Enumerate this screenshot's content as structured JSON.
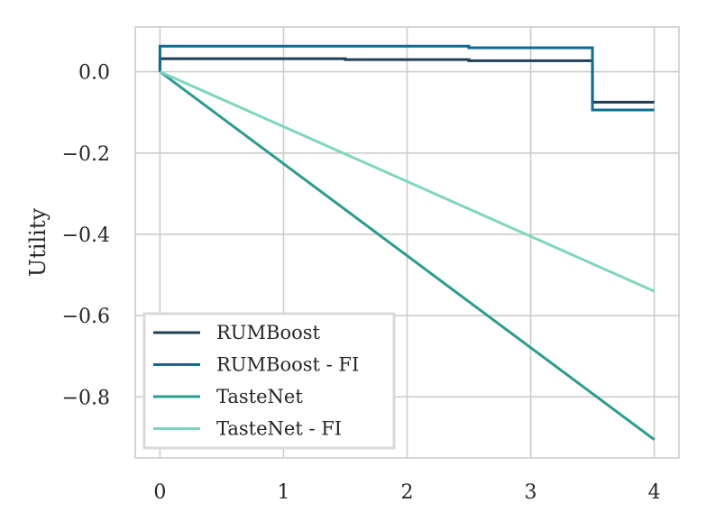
{
  "chart_data": {
    "type": "line",
    "title": "",
    "xlabel": "",
    "ylabel": "Utility",
    "xlim": [
      -0.2,
      4.2
    ],
    "ylim": [
      -0.95,
      0.11
    ],
    "xticks": [
      0,
      1,
      2,
      3,
      4
    ],
    "xtick_labels": [
      "0",
      "1",
      "2",
      "3",
      "4"
    ],
    "yticks": [
      0.0,
      -0.2,
      -0.4,
      -0.6,
      -0.8
    ],
    "ytick_labels": [
      "0.0",
      "−0.2",
      "−0.4",
      "−0.6",
      "−0.8"
    ],
    "grid": true,
    "legend_position": "lower-left",
    "series": [
      {
        "name": "RUMBoost",
        "color": "#1f3f55",
        "step": true,
        "x": [
          0,
          0,
          1.5,
          1.5,
          2.5,
          2.5,
          3.5,
          3.5,
          4
        ],
        "y": [
          0,
          0.032,
          0.032,
          0.03,
          0.03,
          0.027,
          0.027,
          -0.075,
          -0.075
        ]
      },
      {
        "name": "RUMBoost - FI",
        "color": "#0f6c94",
        "step": true,
        "x": [
          0,
          0,
          2.5,
          2.5,
          3.5,
          3.5,
          4
        ],
        "y": [
          0,
          0.063,
          0.063,
          0.059,
          0.059,
          -0.094,
          -0.094
        ]
      },
      {
        "name": "TasteNet",
        "color": "#2a9d8f",
        "step": false,
        "x": [
          0,
          4
        ],
        "y": [
          0,
          -0.905
        ]
      },
      {
        "name": "TasteNet - FI",
        "color": "#7fd6bf",
        "step": false,
        "x": [
          0,
          4
        ],
        "y": [
          0,
          -0.54
        ]
      }
    ]
  }
}
